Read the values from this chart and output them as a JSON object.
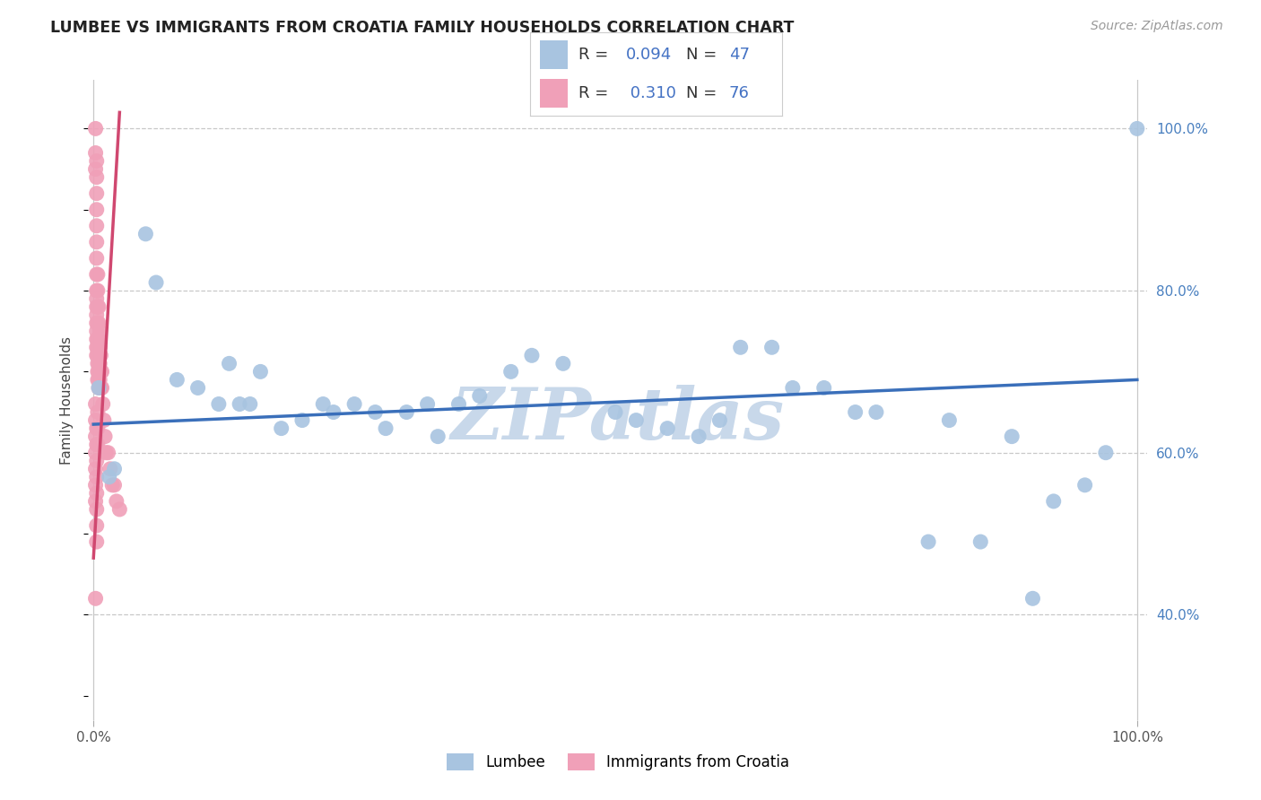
{
  "title": "LUMBEE VS IMMIGRANTS FROM CROATIA FAMILY HOUSEHOLDS CORRELATION CHART",
  "source": "Source: ZipAtlas.com",
  "ylabel": "Family Households",
  "series1_color": "#a8c4e0",
  "series2_color": "#f0a0b8",
  "trendline1_color": "#3a6fba",
  "trendline2_color": "#d04870",
  "R1": 0.094,
  "N1": 47,
  "R2": 0.31,
  "N2": 76,
  "watermark": "ZIPatlas",
  "watermark_color": "#c8d8ea",
  "legend_box_colors": [
    "#a8c4e0",
    "#f0a0b8"
  ],
  "legend_labels": [
    "Lumbee",
    "Immigrants from Croatia"
  ],
  "y_ticks": [
    0.4,
    0.6,
    0.8,
    1.0
  ],
  "y_tick_labels": [
    "40.0%",
    "60.0%",
    "80.0%",
    "100.0%"
  ],
  "lumbee_x": [
    0.005,
    0.015,
    0.02,
    0.05,
    0.06,
    0.08,
    0.1,
    0.12,
    0.13,
    0.14,
    0.15,
    0.16,
    0.18,
    0.2,
    0.22,
    0.23,
    0.25,
    0.27,
    0.3,
    0.32,
    0.35,
    0.37,
    0.4,
    0.42,
    0.45,
    0.5,
    0.52,
    0.55,
    0.58,
    0.6,
    0.62,
    0.65,
    0.67,
    0.7,
    0.73,
    0.75,
    0.8,
    0.82,
    0.85,
    0.88,
    0.9,
    0.92,
    0.95,
    0.97,
    1.0,
    0.28,
    0.33
  ],
  "lumbee_y": [
    0.68,
    0.57,
    0.58,
    0.87,
    0.81,
    0.69,
    0.68,
    0.66,
    0.71,
    0.66,
    0.66,
    0.7,
    0.63,
    0.64,
    0.66,
    0.65,
    0.66,
    0.65,
    0.65,
    0.66,
    0.66,
    0.67,
    0.7,
    0.72,
    0.71,
    0.65,
    0.64,
    0.63,
    0.62,
    0.64,
    0.73,
    0.73,
    0.68,
    0.68,
    0.65,
    0.65,
    0.49,
    0.64,
    0.49,
    0.62,
    0.42,
    0.54,
    0.56,
    0.6,
    1.0,
    0.63,
    0.62
  ],
  "croatia_x": [
    0.002,
    0.002,
    0.002,
    0.003,
    0.003,
    0.003,
    0.003,
    0.003,
    0.003,
    0.003,
    0.003,
    0.003,
    0.003,
    0.003,
    0.003,
    0.003,
    0.003,
    0.003,
    0.003,
    0.003,
    0.004,
    0.004,
    0.004,
    0.004,
    0.004,
    0.004,
    0.004,
    0.004,
    0.004,
    0.004,
    0.005,
    0.005,
    0.005,
    0.005,
    0.005,
    0.005,
    0.005,
    0.005,
    0.006,
    0.006,
    0.006,
    0.006,
    0.007,
    0.007,
    0.007,
    0.008,
    0.008,
    0.009,
    0.01,
    0.011,
    0.012,
    0.014,
    0.016,
    0.018,
    0.02,
    0.022,
    0.025,
    0.002,
    0.002,
    0.002,
    0.002,
    0.002,
    0.002,
    0.002,
    0.003,
    0.003,
    0.003,
    0.003,
    0.003,
    0.003,
    0.003,
    0.003,
    0.004,
    0.004,
    0.004,
    0.002
  ],
  "croatia_y": [
    1.0,
    0.97,
    0.95,
    0.96,
    0.94,
    0.92,
    0.9,
    0.88,
    0.86,
    0.84,
    0.82,
    0.8,
    0.79,
    0.78,
    0.77,
    0.76,
    0.75,
    0.74,
    0.73,
    0.72,
    0.82,
    0.8,
    0.78,
    0.76,
    0.74,
    0.73,
    0.72,
    0.71,
    0.7,
    0.69,
    0.78,
    0.76,
    0.74,
    0.72,
    0.71,
    0.7,
    0.69,
    0.68,
    0.75,
    0.73,
    0.71,
    0.69,
    0.72,
    0.7,
    0.68,
    0.7,
    0.68,
    0.66,
    0.64,
    0.62,
    0.6,
    0.6,
    0.58,
    0.56,
    0.56,
    0.54,
    0.53,
    0.66,
    0.64,
    0.62,
    0.6,
    0.58,
    0.56,
    0.54,
    0.63,
    0.61,
    0.59,
    0.57,
    0.55,
    0.53,
    0.51,
    0.49,
    0.65,
    0.63,
    0.61,
    0.42
  ]
}
